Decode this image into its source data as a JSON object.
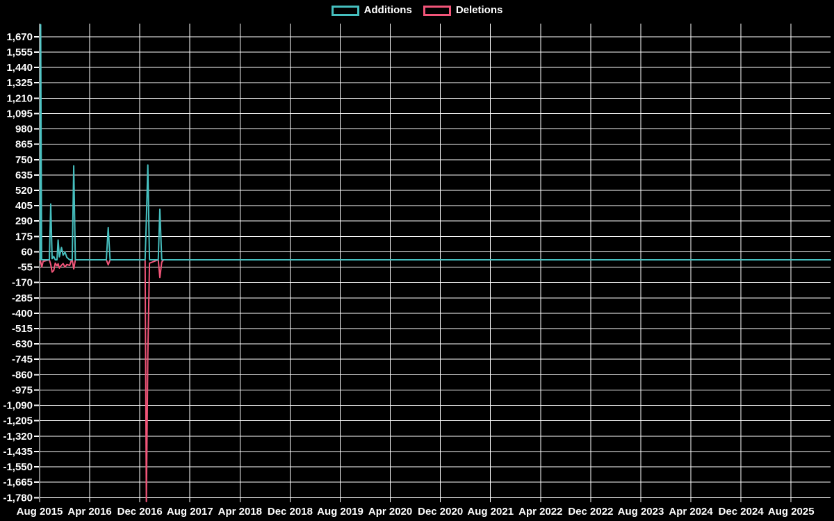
{
  "page": {
    "background": "#000000"
  },
  "legend": {
    "position": "top",
    "items": [
      {
        "label": "Additions",
        "color": "#46bfbf"
      },
      {
        "label": "Deletions",
        "color": "#f25579"
      }
    ]
  },
  "chart_data": {
    "type": "line",
    "title": "",
    "grid": true,
    "legend_position": "top",
    "colors": {
      "background": "#000000",
      "grid": "#ffffff",
      "text": "#ffffff"
    },
    "x_axis": {
      "label": "",
      "unit": "months since Aug 2015",
      "range_months": [
        0,
        126.3
      ],
      "tick_positions_months": [
        0,
        8,
        16,
        24,
        32,
        40,
        48,
        56,
        64,
        72,
        80,
        88,
        96,
        104,
        112,
        120
      ],
      "tick_labels": [
        "Aug 2015",
        "Apr 2016",
        "Dec 2016",
        "Aug 2017",
        "Apr 2018",
        "Dec 2018",
        "Aug 2019",
        "Apr 2020",
        "Dec 2020",
        "Aug 2021",
        "Apr 2022",
        "Dec 2022",
        "Aug 2023",
        "Apr 2024",
        "Dec 2024",
        "Aug 2025"
      ]
    },
    "y_axis": {
      "label": "",
      "range": [
        -1815,
        1768
      ],
      "tick_step": 115,
      "tick_values": [
        1670,
        1555,
        1440,
        1325,
        1210,
        1095,
        980,
        865,
        750,
        635,
        520,
        405,
        290,
        175,
        60,
        -55,
        -170,
        -285,
        -400,
        -515,
        -630,
        -745,
        -860,
        -975,
        -1090,
        -1205,
        -1320,
        -1435,
        -1550,
        -1665,
        -1780
      ],
      "tick_labels": [
        "1,670",
        "1,555",
        "1,440",
        "1,325",
        "1,210",
        "1,095",
        "980",
        "865",
        "750",
        "635",
        "520",
        "405",
        "290",
        "175",
        "60",
        "-55",
        "-170",
        "-285",
        "-400",
        "-515",
        "-630",
        "-745",
        "-860",
        "-975",
        "-1,090",
        "-1,205",
        "-1,320",
        "-1,435",
        "-1,550",
        "-1,665",
        "-1,780"
      ]
    },
    "series": [
      {
        "name": "Additions",
        "color": "#46bfbf",
        "points": [
          [
            0,
            0
          ],
          [
            0.1,
            0
          ],
          [
            0.17,
            1760
          ],
          [
            0.32,
            0
          ],
          [
            0.6,
            0
          ],
          [
            1.55,
            0
          ],
          [
            1.78,
            418
          ],
          [
            2.0,
            8
          ],
          [
            2.25,
            25
          ],
          [
            2.5,
            0
          ],
          [
            2.78,
            0
          ],
          [
            2.95,
            148
          ],
          [
            3.15,
            22
          ],
          [
            3.5,
            92
          ],
          [
            3.75,
            35
          ],
          [
            4.05,
            58
          ],
          [
            4.35,
            18
          ],
          [
            4.8,
            0
          ],
          [
            5.2,
            0
          ],
          [
            5.45,
            703
          ],
          [
            5.7,
            0
          ],
          [
            10.65,
            0
          ],
          [
            10.95,
            240
          ],
          [
            11.25,
            0
          ],
          [
            16.85,
            0
          ],
          [
            17.05,
            300
          ],
          [
            17.28,
            710
          ],
          [
            17.55,
            0
          ],
          [
            18.95,
            0
          ],
          [
            19.2,
            378
          ],
          [
            19.5,
            0
          ],
          [
            126.3,
            0
          ]
        ]
      },
      {
        "name": "Deletions",
        "color": "#f25579",
        "points": [
          [
            0,
            0
          ],
          [
            0.1,
            0
          ],
          [
            0.17,
            -15
          ],
          [
            0.35,
            -55
          ],
          [
            0.55,
            -12
          ],
          [
            1.55,
            0
          ],
          [
            1.78,
            -35
          ],
          [
            2.0,
            -92
          ],
          [
            2.25,
            -80
          ],
          [
            2.5,
            -25
          ],
          [
            2.78,
            -45
          ],
          [
            2.95,
            -30
          ],
          [
            3.15,
            -62
          ],
          [
            3.5,
            -40
          ],
          [
            3.75,
            -28
          ],
          [
            4.05,
            -55
          ],
          [
            4.35,
            -35
          ],
          [
            4.8,
            -42
          ],
          [
            5.05,
            -8
          ],
          [
            5.2,
            0
          ],
          [
            5.45,
            -68
          ],
          [
            5.7,
            0
          ],
          [
            10.65,
            0
          ],
          [
            10.95,
            -38
          ],
          [
            11.25,
            0
          ],
          [
            16.85,
            0
          ],
          [
            17.05,
            -1810
          ],
          [
            17.28,
            -715
          ],
          [
            17.55,
            -25
          ],
          [
            18.95,
            0
          ],
          [
            19.2,
            -132
          ],
          [
            19.5,
            -18
          ],
          [
            19.8,
            0
          ],
          [
            126.3,
            0
          ]
        ]
      }
    ]
  }
}
